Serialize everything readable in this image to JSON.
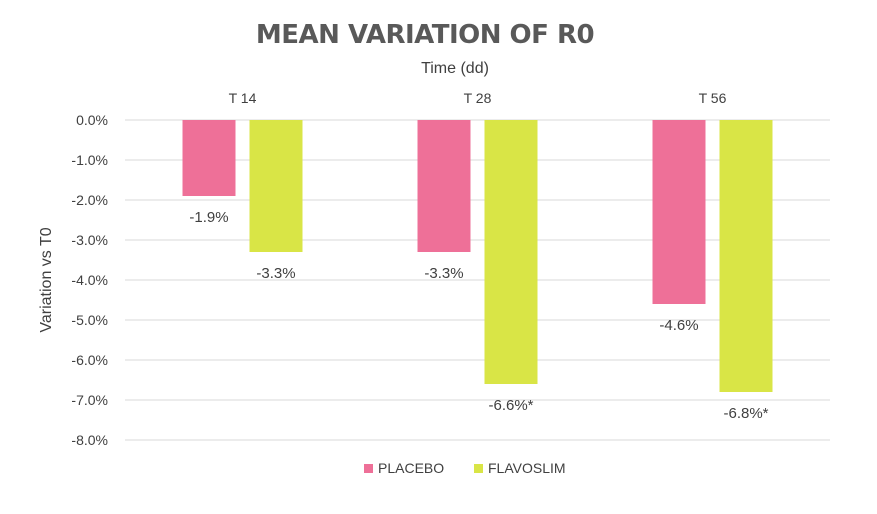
{
  "chart_data": {
    "type": "bar",
    "title": "MEAN VARIATION OF R0",
    "xlabel": "Time (dd)",
    "ylabel": "Variation vs T0",
    "categories": [
      "T 14",
      "T 28",
      "T 56"
    ],
    "ylim": [
      -8.0,
      0.0
    ],
    "y_ticks": [
      "0.0%",
      "-1.0%",
      "-2.0%",
      "-3.0%",
      "-4.0%",
      "-5.0%",
      "-6.0%",
      "-7.0%",
      "-8.0%"
    ],
    "grid": true,
    "legend_position": "bottom",
    "series": [
      {
        "name": "PLACEBO",
        "color": "#EE7098",
        "values": [
          -1.9,
          -3.3,
          -4.6
        ],
        "labels": [
          "-1.9%",
          "-3.3%",
          "-4.6%"
        ]
      },
      {
        "name": "FLAVOSLIM",
        "color": "#D9E546",
        "values": [
          -3.3,
          -6.6,
          -6.8
        ],
        "labels": [
          "-3.3%",
          "-6.6%*",
          "-6.8%*"
        ]
      }
    ]
  }
}
